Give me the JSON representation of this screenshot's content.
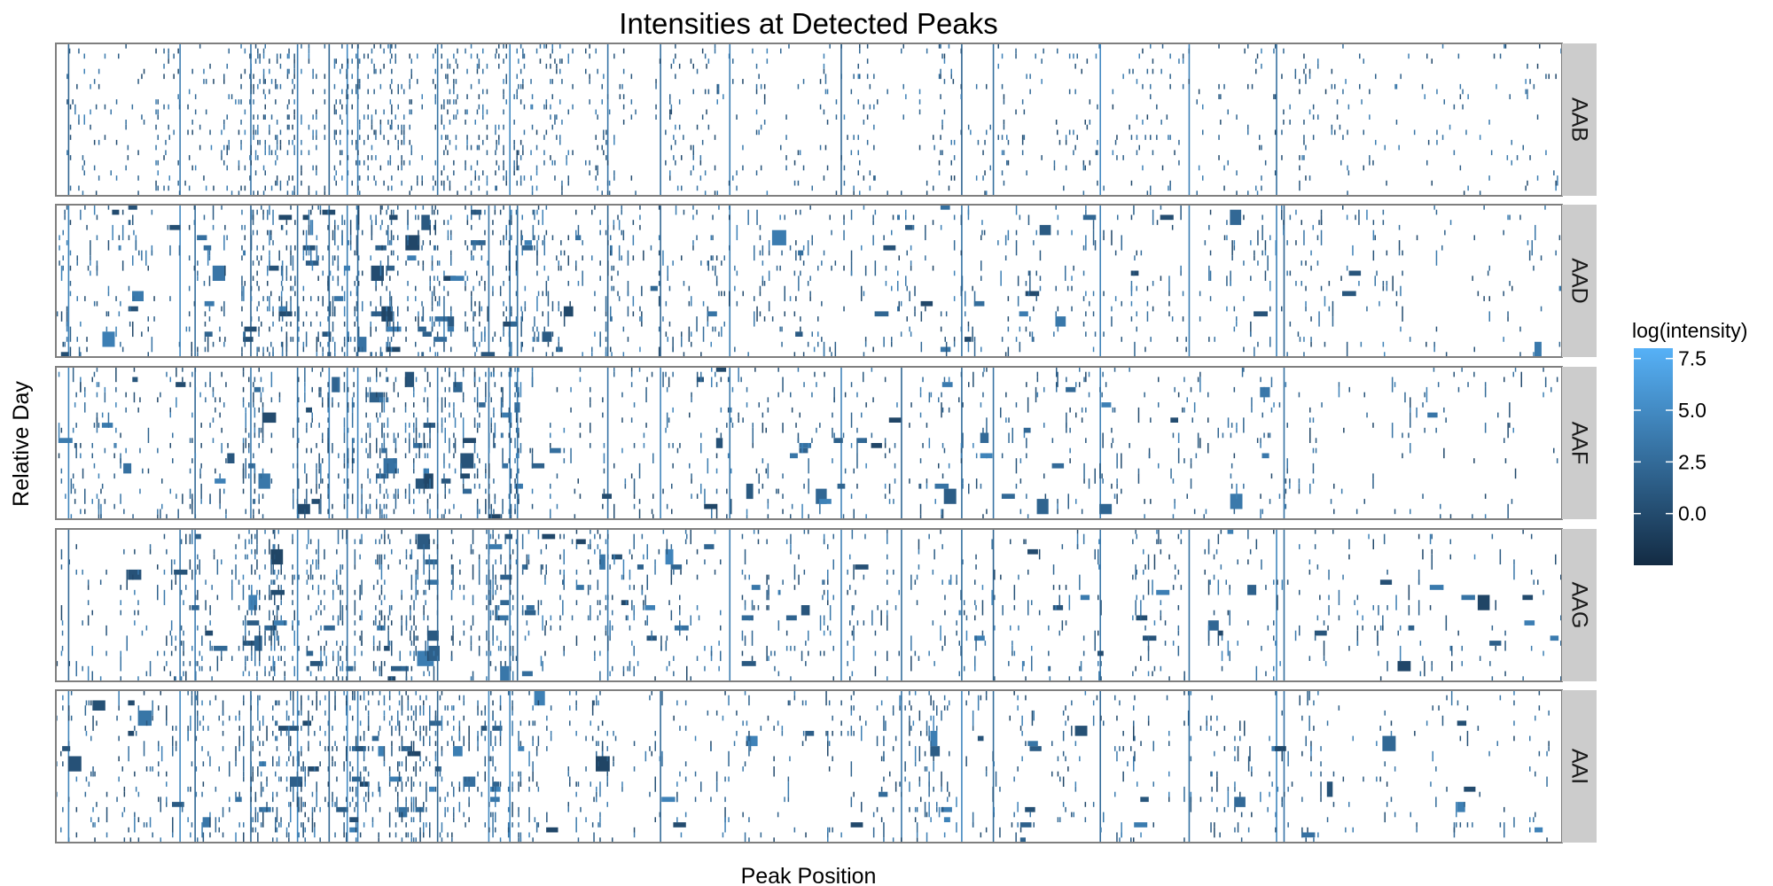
{
  "chart_data": {
    "type": "heatmap",
    "title": "Intensities at Detected Peaks",
    "xlabel": "Peak Position",
    "ylabel": "Relative Day",
    "facets": [
      "AAB",
      "AAD",
      "AAF",
      "AAG",
      "AAI"
    ],
    "grid": false,
    "legend": {
      "title": "log(intensity)",
      "placement": "right",
      "ticks": [
        7.5,
        5.0,
        2.5,
        0.0
      ],
      "tick_labels": [
        "7.5",
        "5.0",
        "2.5",
        "0.0"
      ],
      "range": [
        -2.5,
        8.0
      ],
      "colors": {
        "low": "#132B43",
        "high": "#56B1F7"
      }
    },
    "x_range": [
      0,
      1000
    ],
    "prominent_peaks": [
      8,
      82,
      92,
      129,
      160,
      181,
      193,
      200,
      253,
      287,
      301,
      306,
      366,
      401,
      447,
      521,
      561,
      601,
      622,
      693,
      752,
      810,
      815
    ],
    "strip_color": "#cccccc",
    "panel_border_color": "#7f7f7f",
    "background_color": "#ffffff"
  }
}
